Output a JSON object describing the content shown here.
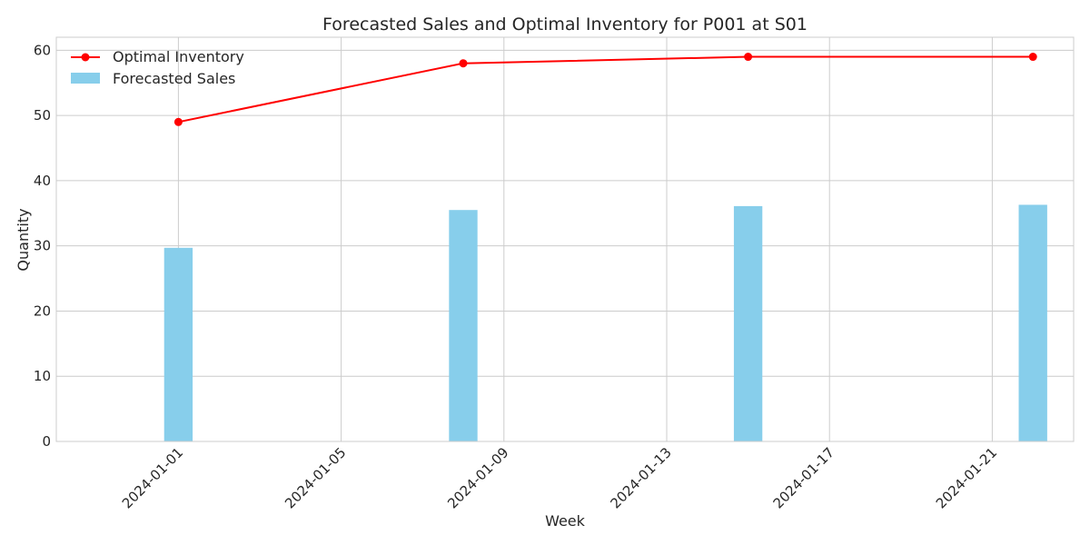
{
  "chart_data": {
    "type": "bar+line",
    "title": "Forecasted Sales and Optimal Inventory for P001 at S01",
    "xlabel": "Week",
    "ylabel": "Quantity",
    "x_axis": {
      "type": "date",
      "range": [
        "2023-12-29",
        "2024-01-23"
      ],
      "ticks": [
        "2024-01-01",
        "2024-01-05",
        "2024-01-09",
        "2024-01-13",
        "2024-01-17",
        "2024-01-21"
      ]
    },
    "y_axis": {
      "range": [
        0,
        62
      ],
      "ticks": [
        0,
        10,
        20,
        30,
        40,
        50,
        60
      ]
    },
    "grid": true,
    "legend": {
      "placement": "top-left"
    },
    "x": [
      "2024-01-01",
      "2024-01-08",
      "2024-01-15",
      "2024-01-22"
    ],
    "series": [
      {
        "name": "Optimal Inventory",
        "type": "line",
        "marker": "circle",
        "color": "#ff0000",
        "values": [
          49,
          58,
          59,
          59
        ]
      },
      {
        "name": "Forecasted Sales",
        "type": "bar",
        "color": "#87ceeb",
        "values": [
          29.7,
          35.5,
          36.1,
          36.3
        ]
      }
    ]
  }
}
